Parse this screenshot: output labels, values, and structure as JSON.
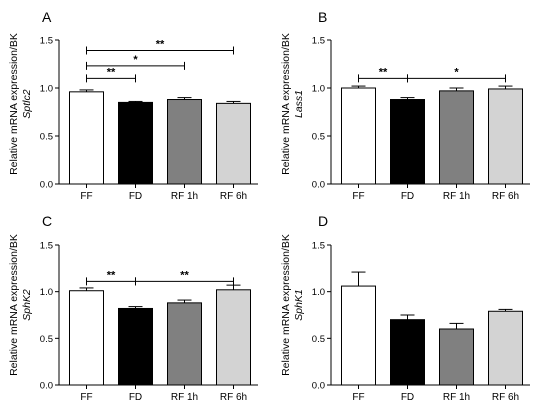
{
  "chart_data": [
    {
      "type": "bar",
      "panel_label": "A",
      "ylabel_line1": "Relative mRNA expression/BK",
      "ylabel_gene": "Sptlc2",
      "categories": [
        "FF",
        "FD",
        "RF 1h",
        "RF 6h"
      ],
      "values": [
        0.96,
        0.85,
        0.88,
        0.84
      ],
      "errors": [
        0.02,
        0.01,
        0.02,
        0.02
      ],
      "bar_colors": [
        "#ffffff",
        "#000000",
        "#808080",
        "#d3d3d3"
      ],
      "ylim": [
        0,
        1.5
      ],
      "yticks": [
        "0.0",
        "0.5",
        "1.0",
        "1.5"
      ],
      "ytick_values": [
        0,
        0.5,
        1.0,
        1.5
      ],
      "significance": [
        {
          "from": 0,
          "to": 1,
          "label": "**",
          "y": 1.1
        },
        {
          "from": 0,
          "to": 2,
          "label": "*",
          "y": 1.23
        },
        {
          "from": 0,
          "to": 3,
          "label": "**",
          "y": 1.39
        }
      ]
    },
    {
      "type": "bar",
      "panel_label": "B",
      "ylabel_line1": "Relative mRNA expression/BK",
      "ylabel_gene": "Lass1",
      "categories": [
        "FF",
        "FD",
        "RF 1h",
        "RF 6h"
      ],
      "values": [
        1.0,
        0.88,
        0.97,
        0.99
      ],
      "errors": [
        0.02,
        0.02,
        0.03,
        0.03
      ],
      "bar_colors": [
        "#ffffff",
        "#000000",
        "#808080",
        "#d3d3d3"
      ],
      "ylim": [
        0,
        1.5
      ],
      "yticks": [
        "0.0",
        "0.5",
        "1.0",
        "1.5"
      ],
      "ytick_values": [
        0,
        0.5,
        1.0,
        1.5
      ],
      "significance": [
        {
          "from": 0,
          "to": 1,
          "label": "**",
          "y": 1.1
        },
        {
          "from": 1,
          "to": 3,
          "label": "*",
          "y": 1.1
        }
      ]
    },
    {
      "type": "bar",
      "panel_label": "C",
      "ylabel_line1": "Relative mRNA expression/BK",
      "ylabel_gene": "SphK2",
      "categories": [
        "FF",
        "FD",
        "RF 1h",
        "RF 6h"
      ],
      "values": [
        1.01,
        0.82,
        0.88,
        1.02
      ],
      "errors": [
        0.03,
        0.02,
        0.03,
        0.05
      ],
      "bar_colors": [
        "#ffffff",
        "#000000",
        "#808080",
        "#d3d3d3"
      ],
      "ylim": [
        0,
        1.5
      ],
      "yticks": [
        "0.0",
        "0.5",
        "1.0",
        "1.5"
      ],
      "ytick_values": [
        0,
        0.5,
        1.0,
        1.5
      ],
      "significance": [
        {
          "from": 0,
          "to": 1,
          "label": "**",
          "y": 1.11
        },
        {
          "from": 1,
          "to": 3,
          "label": "**",
          "y": 1.11
        }
      ]
    },
    {
      "type": "bar",
      "panel_label": "D",
      "ylabel_line1": "Relative mRNA expression/BK",
      "ylabel_gene": "SphK1",
      "categories": [
        "FF",
        "FD",
        "RF 1h",
        "RF 6h"
      ],
      "values": [
        1.06,
        0.7,
        0.6,
        0.79
      ],
      "errors": [
        0.15,
        0.05,
        0.06,
        0.02
      ],
      "bar_colors": [
        "#ffffff",
        "#000000",
        "#808080",
        "#d3d3d3"
      ],
      "ylim": [
        0,
        1.5
      ],
      "yticks": [
        "0.0",
        "0.5",
        "1.0",
        "1.5"
      ],
      "ytick_values": [
        0,
        0.5,
        1.0,
        1.5
      ],
      "significance": []
    }
  ]
}
